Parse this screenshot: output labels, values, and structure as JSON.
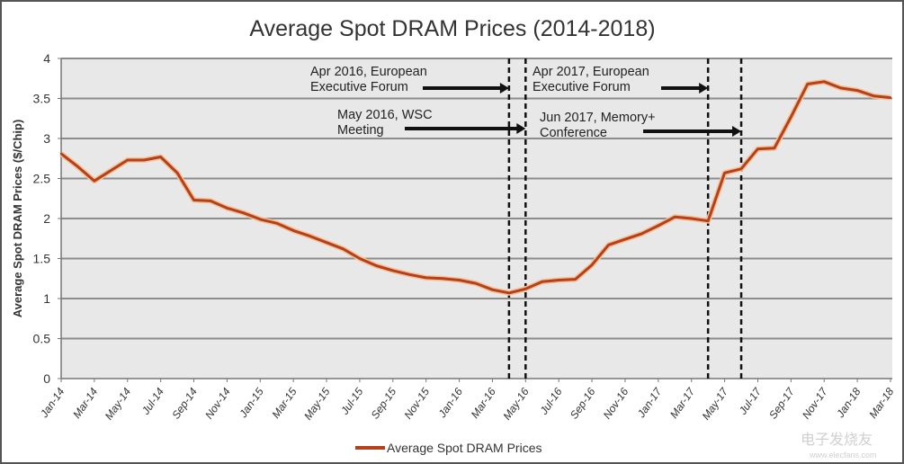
{
  "chart_data": {
    "type": "line",
    "title": "Average Spot DRAM Prices (2014-2018)",
    "xlabel": "",
    "ylabel": "Average Spot DRAM Prices ($/Chip)",
    "ylim": [
      0,
      4
    ],
    "yticks": [
      "0",
      "0.5",
      "1",
      "1.5",
      "2",
      "2.5",
      "3",
      "3.5",
      "4"
    ],
    "grid": true,
    "legend_position": "bottom",
    "x_tick_labels": [
      "Jan-14",
      "Mar-14",
      "May-14",
      "Jul-14",
      "Sep-14",
      "Nov-14",
      "Jan-15",
      "Mar-15",
      "May-15",
      "Jul-15",
      "Sep-15",
      "Nov-15",
      "Jan-16",
      "Mar-16",
      "May-16",
      "Jul-16",
      "Sep-16",
      "Nov-16",
      "Jan-17",
      "Mar-17",
      "May-17",
      "Jul-17",
      "Sep-17",
      "Nov-17",
      "Jan-18",
      "Mar-18"
    ],
    "x": [
      "2014-01",
      "2014-02",
      "2014-03",
      "2014-04",
      "2014-05",
      "2014-06",
      "2014-07",
      "2014-08",
      "2014-09",
      "2014-10",
      "2014-11",
      "2014-12",
      "2015-01",
      "2015-02",
      "2015-03",
      "2015-04",
      "2015-05",
      "2015-06",
      "2015-07",
      "2015-08",
      "2015-09",
      "2015-10",
      "2015-11",
      "2015-12",
      "2016-01",
      "2016-02",
      "2016-03",
      "2016-04",
      "2016-05",
      "2016-06",
      "2016-07",
      "2016-08",
      "2016-09",
      "2016-10",
      "2016-11",
      "2016-12",
      "2017-01",
      "2017-02",
      "2017-03",
      "2017-04",
      "2017-05",
      "2017-06",
      "2017-07",
      "2017-08",
      "2017-09",
      "2017-10",
      "2017-11",
      "2017-12",
      "2018-01",
      "2018-02",
      "2018-03"
    ],
    "series": [
      {
        "name": "Average Spot DRAM Prices",
        "color": "#b5401a",
        "values": [
          2.81,
          2.65,
          2.47,
          2.6,
          2.73,
          2.73,
          2.77,
          2.57,
          2.23,
          2.22,
          2.13,
          2.07,
          1.99,
          1.94,
          1.85,
          1.78,
          1.7,
          1.62,
          1.5,
          1.41,
          1.35,
          1.3,
          1.26,
          1.25,
          1.23,
          1.19,
          1.11,
          1.07,
          1.12,
          1.21,
          1.23,
          1.24,
          1.42,
          1.67,
          1.74,
          1.81,
          1.91,
          2.02,
          2.0,
          1.97,
          2.57,
          2.62,
          2.87,
          2.88,
          3.27,
          3.68,
          3.71,
          3.63,
          3.6,
          3.53,
          3.51
        ]
      }
    ],
    "annotations": [
      {
        "date": "2016-04",
        "lines": [
          "Apr 2016, European",
          "Executive Forum"
        ]
      },
      {
        "date": "2016-05",
        "lines": [
          "May 2016, WSC",
          "Meeting"
        ]
      },
      {
        "date": "2017-04",
        "lines": [
          "Apr 2017, European",
          "Executive Forum"
        ]
      },
      {
        "date": "2017-06",
        "lines": [
          "Jun 2017, Memory+",
          "Conference"
        ]
      }
    ]
  },
  "watermark": {
    "brand": "电子发烧友",
    "url": "www.elecfans.com"
  }
}
